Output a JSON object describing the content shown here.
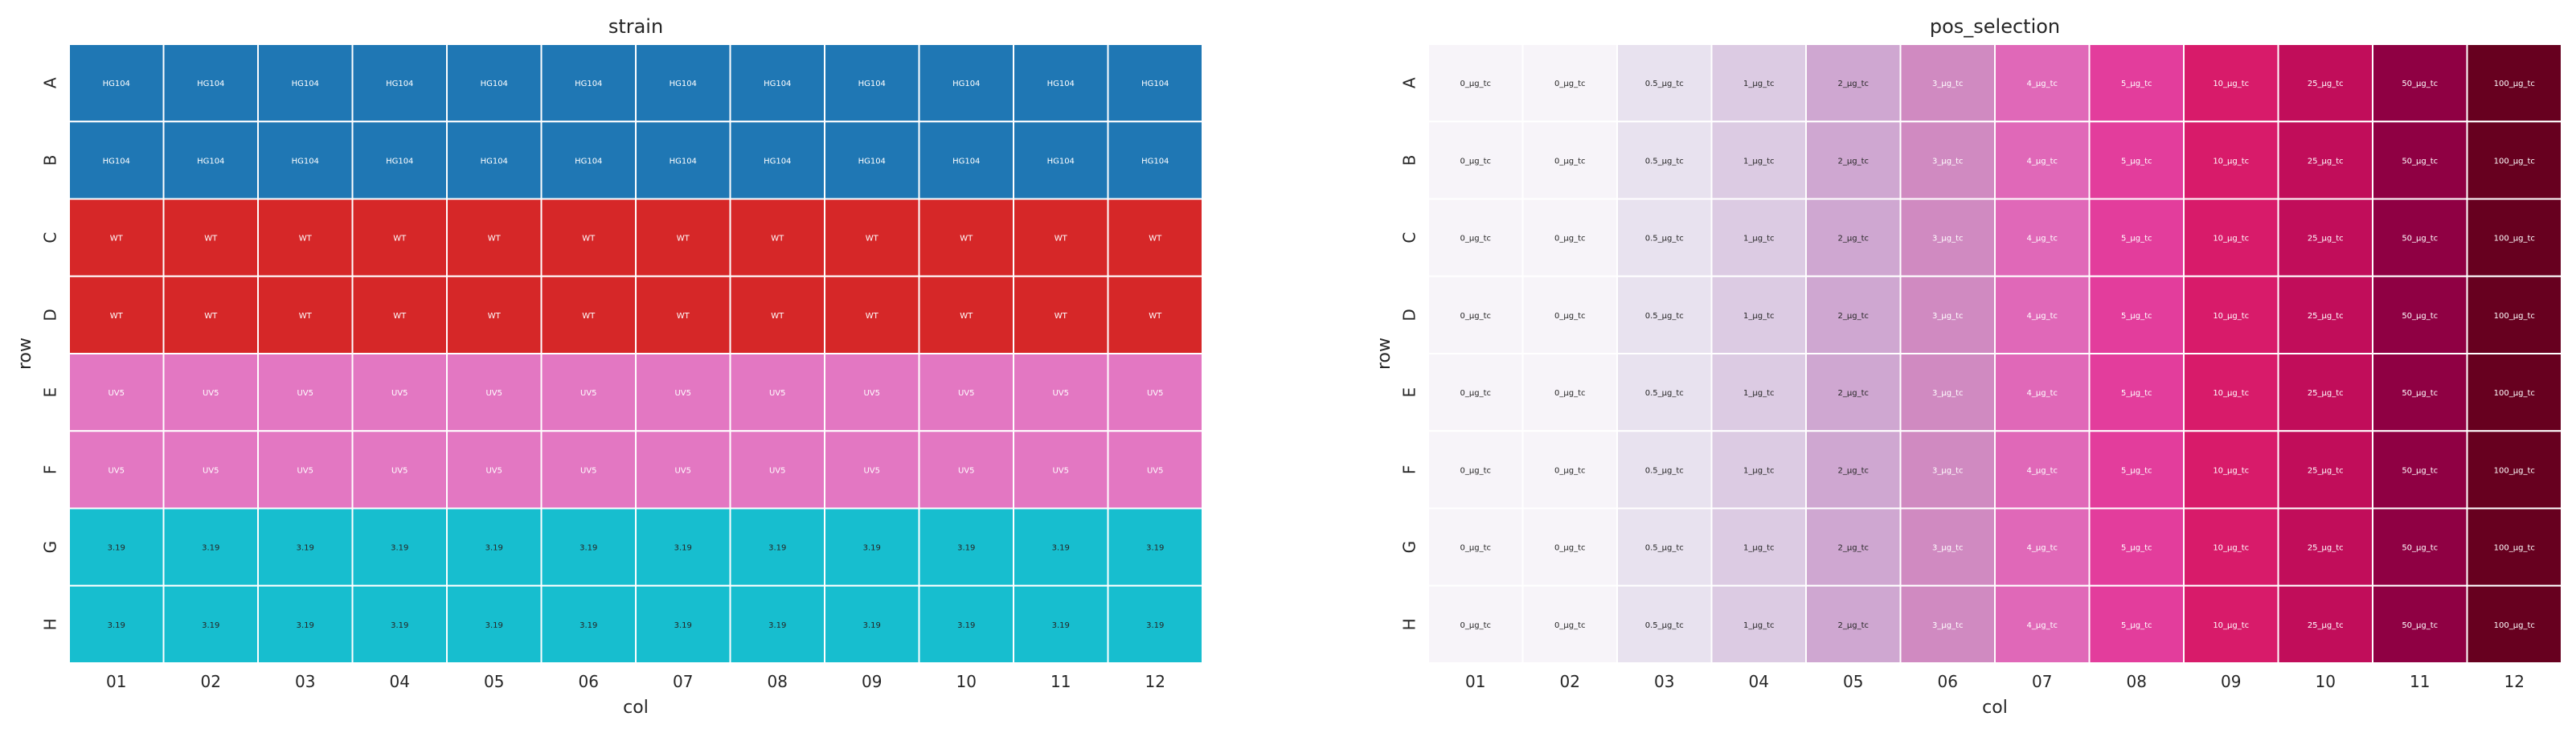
{
  "chart_data": [
    {
      "type": "heatmap",
      "title": "strain",
      "xlabel": "col",
      "ylabel": "row",
      "rows": [
        "A",
        "B",
        "C",
        "D",
        "E",
        "F",
        "G",
        "H"
      ],
      "cols": [
        "01",
        "02",
        "03",
        "04",
        "05",
        "06",
        "07",
        "08",
        "09",
        "10",
        "11",
        "12"
      ],
      "row_values": [
        "HG104",
        "HG104",
        "WT",
        "WT",
        "UV5",
        "UV5",
        "3.19",
        "3.19"
      ],
      "category_colors": {
        "HG104": "#1f77b4",
        "WT": "#d62728",
        "UV5": "#e377c2",
        "3.19": "#17becf"
      },
      "text_colors": {
        "HG104": "#ffffff",
        "WT": "#ffffff",
        "UV5": "#ffffff",
        "3.19": "#262626"
      },
      "grid": false,
      "legend": "none"
    },
    {
      "type": "heatmap",
      "title": "pos_selection",
      "xlabel": "col",
      "ylabel": "row",
      "rows": [
        "A",
        "B",
        "C",
        "D",
        "E",
        "F",
        "G",
        "H"
      ],
      "cols": [
        "01",
        "02",
        "03",
        "04",
        "05",
        "06",
        "07",
        "08",
        "09",
        "10",
        "11",
        "12"
      ],
      "col_values": [
        "0_µg_tc",
        "0_µg_tc",
        "0.5_µg_tc",
        "1_µg_tc",
        "2_µg_tc",
        "3_µg_tc",
        "4_µg_tc",
        "5_µg_tc",
        "10_µg_tc",
        "25_µg_tc",
        "50_µg_tc",
        "100_µg_tc"
      ],
      "col_colors": [
        "#f7f4f9",
        "#f7f4f9",
        "#e8e2ef",
        "#dccbe3",
        "#cfa7d1",
        "#d08ac1",
        "#e068b8",
        "#e33d9c",
        "#d81b6a",
        "#c10d5a",
        "#8f0043",
        "#67001f"
      ],
      "text_colors": [
        "#262626",
        "#262626",
        "#262626",
        "#262626",
        "#262626",
        "#ffffff",
        "#ffffff",
        "#ffffff",
        "#ffffff",
        "#ffffff",
        "#ffffff",
        "#ffffff"
      ],
      "grid": false,
      "legend": "none"
    }
  ]
}
